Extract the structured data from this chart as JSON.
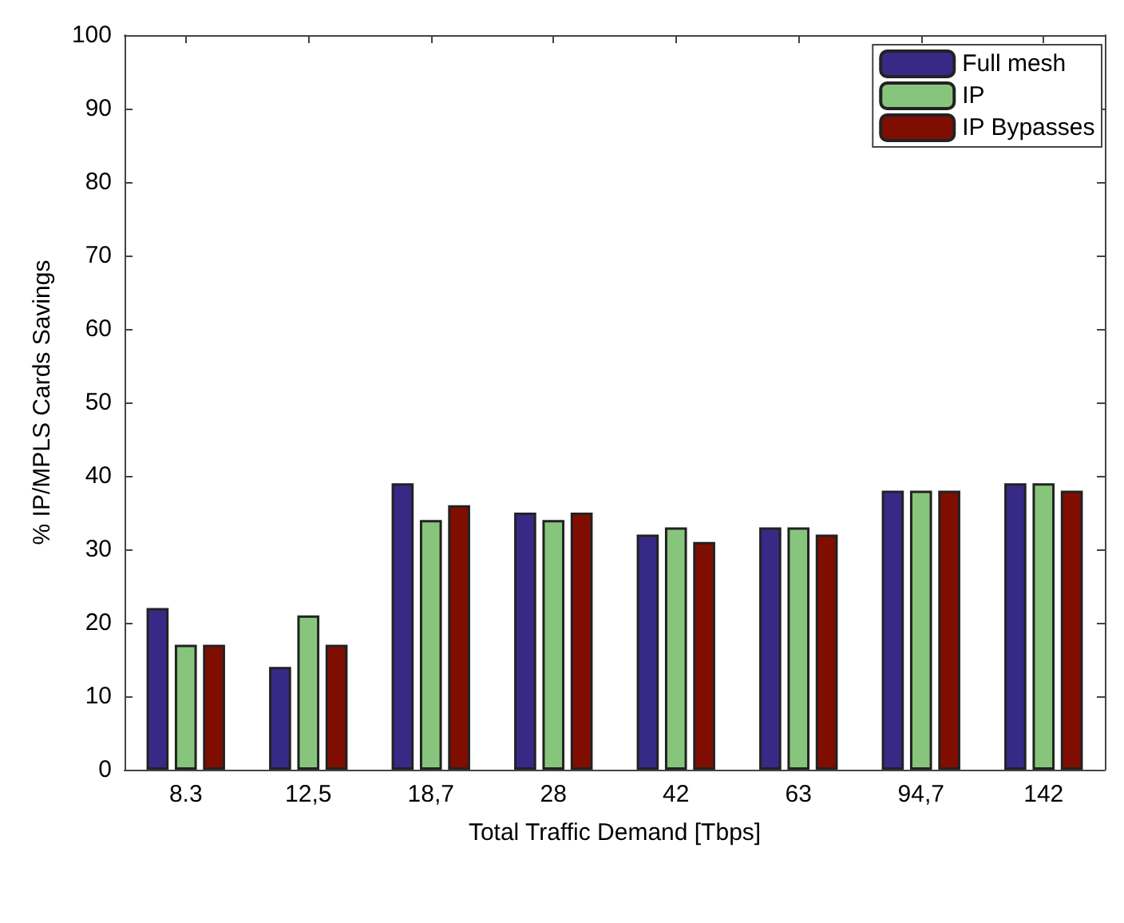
{
  "chart_data": {
    "type": "bar",
    "xlabel": "Total Traffic Demand [Tbps]",
    "ylabel": "% IP/MPLS Cards Savings",
    "categories": [
      "8.3",
      "12,5",
      "18,7",
      "28",
      "42",
      "63",
      "94,7",
      "142"
    ],
    "series": [
      {
        "name": "Full mesh",
        "color": "#372a87",
        "values": [
          22,
          14,
          39,
          35,
          32,
          33,
          38,
          39
        ]
      },
      {
        "name": "IP",
        "color": "#88c57c",
        "values": [
          17,
          21,
          34,
          34,
          33,
          33,
          38,
          39
        ]
      },
      {
        "name": "IP Bypasses",
        "color": "#7f0e00",
        "values": [
          17,
          17,
          36,
          35,
          31,
          32,
          38,
          38
        ]
      }
    ],
    "ylim": [
      0,
      100
    ],
    "yticks": [
      0,
      10,
      20,
      30,
      40,
      50,
      60,
      70,
      80,
      90,
      100
    ],
    "grid": false,
    "legend": "top right"
  }
}
